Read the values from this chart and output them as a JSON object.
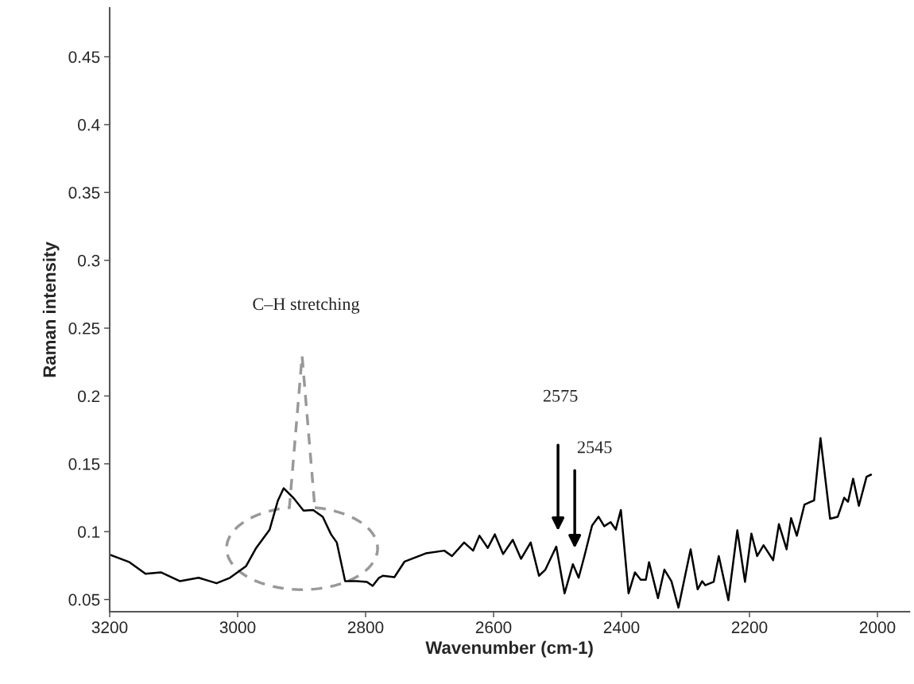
{
  "chart_data": {
    "type": "line",
    "xlabel": "Wavenumber (cm-1)",
    "ylabel": "Raman intensity",
    "xlim": [
      3200,
      1950
    ],
    "xticks": [
      3200,
      3000,
      2800,
      2600,
      2400,
      2200,
      2000
    ],
    "ylim": [
      0.041,
      0.486
    ],
    "yticks": [
      0.05,
      0.1,
      0.15,
      0.2,
      0.25,
      0.3,
      0.35,
      0.4,
      0.45
    ],
    "grid": false,
    "legend": false,
    "marker": "none",
    "line_style": "solid",
    "series": [
      {
        "color": "#000000",
        "x": [
          3200,
          3169,
          3144,
          3120,
          3090,
          3061,
          3033,
          3012,
          2987,
          2971,
          2950,
          2937,
          2928,
          2913,
          2897,
          2882,
          2867,
          2854,
          2845,
          2832,
          2814,
          2798,
          2789,
          2779,
          2773,
          2755,
          2739,
          2706,
          2677,
          2665,
          2646,
          2632,
          2622,
          2609,
          2598,
          2585,
          2570,
          2557,
          2542,
          2529,
          2519,
          2502,
          2489,
          2476,
          2467,
          2458,
          2446,
          2436,
          2427,
          2417,
          2409,
          2401,
          2389,
          2379,
          2370,
          2362,
          2357,
          2343,
          2333,
          2322,
          2311,
          2292,
          2281,
          2274,
          2269,
          2256,
          2248,
          2233,
          2219,
          2207,
          2197,
          2188,
          2178,
          2163,
          2154,
          2142,
          2135,
          2126,
          2114,
          2099,
          2089,
          2074,
          2062,
          2052,
          2046,
          2038,
          2029,
          2017,
          2010
        ],
        "values": [
          0.083,
          0.0775,
          0.069,
          0.07,
          0.0635,
          0.066,
          0.062,
          0.066,
          0.0745,
          0.088,
          0.1015,
          0.123,
          0.132,
          0.125,
          0.1155,
          0.116,
          0.111,
          0.098,
          0.092,
          0.0635,
          0.0635,
          0.063,
          0.06,
          0.066,
          0.0675,
          0.0665,
          0.078,
          0.084,
          0.086,
          0.082,
          0.092,
          0.086,
          0.097,
          0.088,
          0.098,
          0.0835,
          0.094,
          0.08,
          0.092,
          0.0675,
          0.072,
          0.089,
          0.0545,
          0.076,
          0.066,
          0.082,
          0.1045,
          0.111,
          0.104,
          0.107,
          0.1015,
          0.116,
          0.0545,
          0.07,
          0.0645,
          0.0645,
          0.0775,
          0.051,
          0.072,
          0.0635,
          0.044,
          0.087,
          0.0575,
          0.0635,
          0.0605,
          0.063,
          0.082,
          0.0495,
          0.101,
          0.063,
          0.0985,
          0.082,
          0.09,
          0.079,
          0.1055,
          0.087,
          0.11,
          0.097,
          0.12,
          0.123,
          0.169,
          0.1095,
          0.111,
          0.125,
          0.122,
          0.139,
          0.119,
          0.1405,
          0.142
        ]
      }
    ],
    "annotations": [
      "C–H stretching",
      "2575",
      "2545"
    ]
  }
}
